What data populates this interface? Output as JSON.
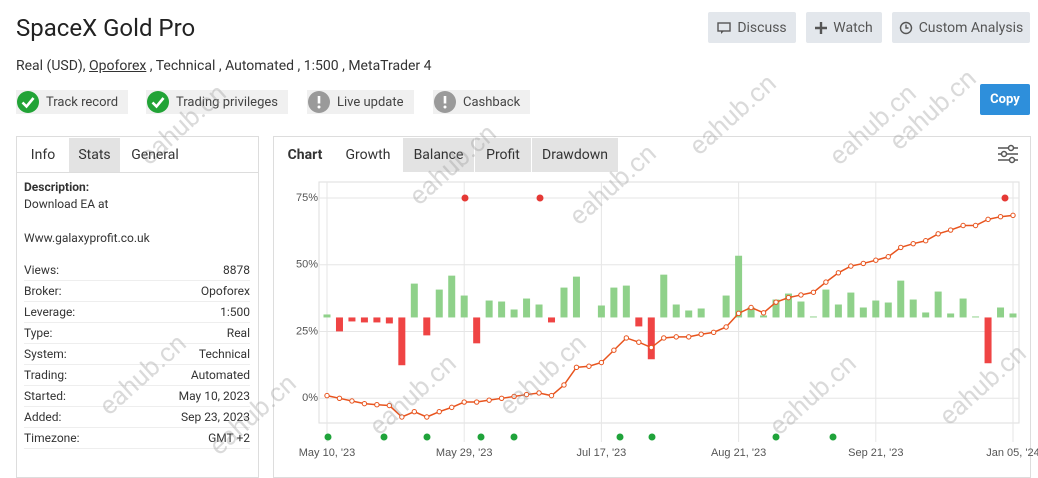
{
  "header": {
    "title": "SpaceX Gold Pro",
    "buttons": [
      "Discuss",
      "Watch",
      "Custom Analysis"
    ],
    "subtitle": {
      "before": "Real (USD), ",
      "broker": "Opoforex",
      "after": " , Technical , Automated , 1:500 , MetaTrader 4"
    },
    "badges": [
      "Track record",
      "Trading privileges",
      "Live update",
      "Cashback"
    ],
    "copy": "Copy"
  },
  "side_panel": {
    "tabs": [
      "Info",
      "Stats",
      "General"
    ],
    "description_label": "Description:",
    "description": [
      "Download EA at",
      "Www.galaxyprofit.co.uk"
    ],
    "rows": [
      [
        "Views:",
        "8878"
      ],
      [
        "Broker:",
        "Opoforex"
      ],
      [
        "Leverage:",
        "1:500"
      ],
      [
        "Type:",
        "Real"
      ],
      [
        "System:",
        "Technical"
      ],
      [
        "Trading:",
        "Automated"
      ],
      [
        "Started:",
        "May 10, 2023"
      ],
      [
        "Added:",
        "Sep 23, 2023"
      ],
      [
        "Timezone:",
        "GMT +2"
      ]
    ]
  },
  "chart_tabs": [
    "Chart",
    "Growth",
    "Balance",
    "Profit",
    "Drawdown"
  ],
  "watermark": "eahub.cn",
  "chart_data": {
    "type": "line",
    "categories": [
      "May 10, '23",
      null,
      null,
      null,
      null,
      null,
      null,
      null,
      null,
      null,
      null,
      "May 29, '23",
      null,
      null,
      null,
      null,
      null,
      null,
      null,
      null,
      null,
      null,
      "Jul 17, '23",
      null,
      null,
      null,
      null,
      null,
      null,
      null,
      null,
      null,
      null,
      "Aug 21, '23",
      null,
      null,
      null,
      null,
      null,
      null,
      null,
      null,
      null,
      null,
      "Sep 21, '23",
      null,
      null,
      null,
      null,
      null,
      null,
      null,
      null,
      null,
      null,
      "Jan 05, '24"
    ],
    "series": [
      {
        "color": "#e8541e",
        "values": [
          1,
          0,
          -1,
          -2,
          -2.4,
          -2.7,
          -7,
          -5,
          -7,
          -5,
          -3.4,
          -1.4,
          -1.4,
          -0.7,
          0,
          0.7,
          1.4,
          2,
          1,
          5,
          11.6,
          12,
          13.4,
          18,
          22.6,
          21,
          19,
          22.6,
          23,
          23,
          24,
          24.7,
          26.7,
          31.8,
          34,
          32,
          36,
          37.7,
          38.7,
          39.7,
          43.5,
          47,
          49.5,
          50.5,
          51.7,
          53,
          56.5,
          57.9,
          59,
          61.6,
          63,
          64.7,
          64.7,
          67,
          68,
          68.5
        ]
      },
      {
        "type": "bar",
        "axis": "y2",
        "color": "#8fd18a",
        "negative_color": "#ef4444",
        "values": [
          0.3,
          -1.4,
          -0.4,
          -0.5,
          -0.5,
          -0.6,
          -4.8,
          3.4,
          -1.8,
          2.8,
          4.2,
          2.2,
          -2.6,
          1.7,
          1.6,
          0.8,
          1.9,
          1.3,
          -0.5,
          3.0,
          4.1,
          0,
          1.2,
          3.0,
          3.2,
          -0.9,
          -4.2,
          4.3,
          1.3,
          0.7,
          0.9,
          0,
          2.2,
          6.2,
          1.0,
          0.2,
          1.8,
          2.4,
          1.6,
          0.1,
          2.8,
          1.3,
          2.5,
          1.0,
          1.7,
          1.5,
          3.7,
          1.8,
          0.5,
          2.6,
          0.4,
          1.9,
          0.1,
          -4.6,
          1.0,
          0.4
        ]
      }
    ],
    "ylim": [
      -7,
      75
    ],
    "yticks": [
      {
        "value": 0,
        "label": "0%"
      },
      {
        "value": 25,
        "label": "25%"
      },
      {
        "value": 50,
        "label": "50%"
      },
      {
        "value": 75,
        "label": "75%"
      }
    ],
    "y2lim": [
      -10,
      12
    ],
    "grid": true
  }
}
